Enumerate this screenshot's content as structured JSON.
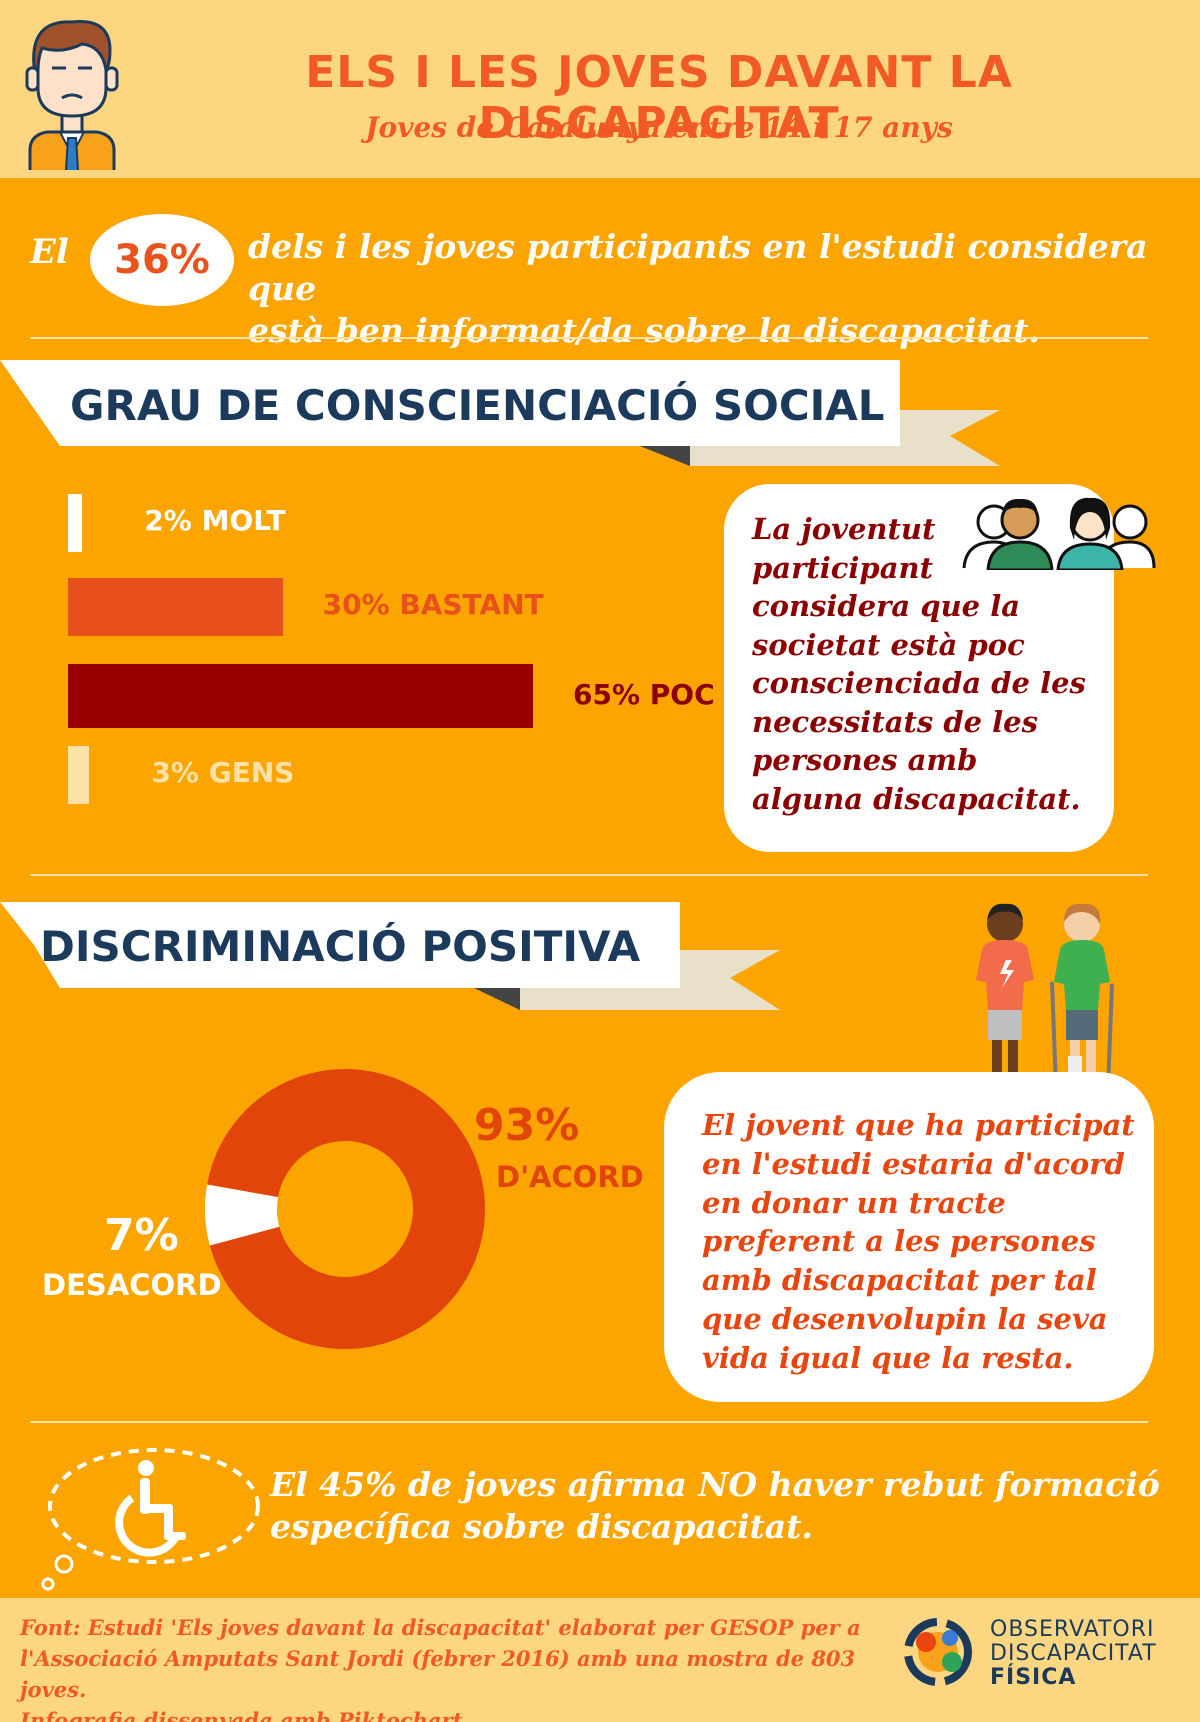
{
  "header": {
    "title": "ELS I LES JOVES DAVANT LA DISCAPACITAT",
    "subtitle": "Joves de Catalunya entre 14 i 17 anys"
  },
  "intro": {
    "prefix": "El",
    "percent": "36%",
    "line1": "dels i les joves participants en l'estudi considera que",
    "line2": "està ben informat/da sobre la discapacitat."
  },
  "awareness": {
    "heading": "GRAU DE CONSCIENCIACIÓ SOCIAL",
    "bubble_lines": [
      "La joventut",
      "participant",
      "considera que la",
      "societat està poc",
      "conscienciada de les",
      "necessitats de les",
      "persones amb",
      "alguna discapacitat."
    ]
  },
  "discrimination": {
    "heading": "DISCRIMINACIÓ POSITIVA",
    "bubble_lines": [
      "El jovent que ha participat",
      "en l'estudi estaria d'acord",
      "en donar un tracte",
      "preferent a les persones",
      "amb discapacitat per tal",
      "que desenvolupin la seva",
      "vida igual que la resta."
    ]
  },
  "training": {
    "line1": "El 45% de joves afirma NO haver rebut formació",
    "line2": "específica sobre discapacitat."
  },
  "footer": {
    "source_lines": [
      "Font: Estudi 'Els joves davant la discapacitat' elaborat per GESOP per a",
      "l'Associació Amputats Sant Jordi (febrer 2016) amb una mostra de 803 joves.",
      "Infografia dissenyada amb Piktochart."
    ],
    "logo_line1": "OBSERVATORI",
    "logo_line2": "DISCAPACITAT",
    "logo_line3": "FÍSICA"
  },
  "chart_data": [
    {
      "type": "bar",
      "orientation": "horizontal",
      "categories": [
        "MOLT",
        "BASTANT",
        "POC",
        "GENS"
      ],
      "values": [
        2,
        30,
        65,
        3
      ],
      "value_labels": [
        "2%",
        "30%",
        "65%",
        "3%"
      ],
      "colors": [
        "#ffffff",
        "#e8501c",
        "#990000",
        "#fde2a8"
      ],
      "unit": "%"
    },
    {
      "type": "pie",
      "style": "donut",
      "categories": [
        "D'ACORD",
        "DESACORD"
      ],
      "values": [
        93,
        7
      ],
      "value_labels": [
        "93%",
        "7%"
      ],
      "colors": [
        "#e2450a",
        "#ffffff"
      ],
      "unit": "%"
    }
  ],
  "colors": {
    "background": "#fca500",
    "header_bg": "#fdd681",
    "accent": "#f15a24",
    "navy": "#1b3a5c",
    "dark_red": "#990000"
  }
}
